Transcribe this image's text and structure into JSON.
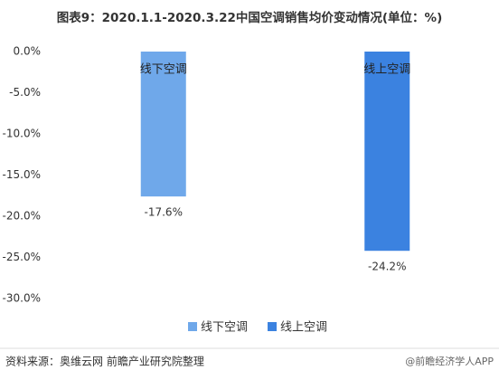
{
  "chart_data": {
    "type": "bar",
    "title": "图表9：2020.1.1-2020.3.22中国空调销售均价变动情况(单位：%)",
    "categories": [
      "线下空调",
      "线上空调"
    ],
    "series": [
      {
        "name": "线下空调",
        "color": "#6fa8ea",
        "values": [
          -17.6,
          null
        ],
        "value_labels": [
          "-17.6%",
          null
        ]
      },
      {
        "name": "线上空调",
        "color": "#3b82e0",
        "values": [
          null,
          -24.2
        ],
        "value_labels": [
          null,
          "-24.2%"
        ]
      }
    ],
    "ylim": [
      -30,
      0
    ],
    "yticks": [
      {
        "value": 0,
        "label": "0.0%"
      },
      {
        "value": -5,
        "label": "-5.0%"
      },
      {
        "value": -10,
        "label": "-10.0%"
      },
      {
        "value": -15,
        "label": "-15.0%"
      },
      {
        "value": -20,
        "label": "-20.0%"
      },
      {
        "value": -25,
        "label": "-25.0%"
      },
      {
        "value": -30,
        "label": "-30.0%"
      }
    ],
    "grid": false,
    "source": "资料来源：奥维云网 前瞻产业研究院整理",
    "watermark": "@前瞻经济学人APP"
  }
}
